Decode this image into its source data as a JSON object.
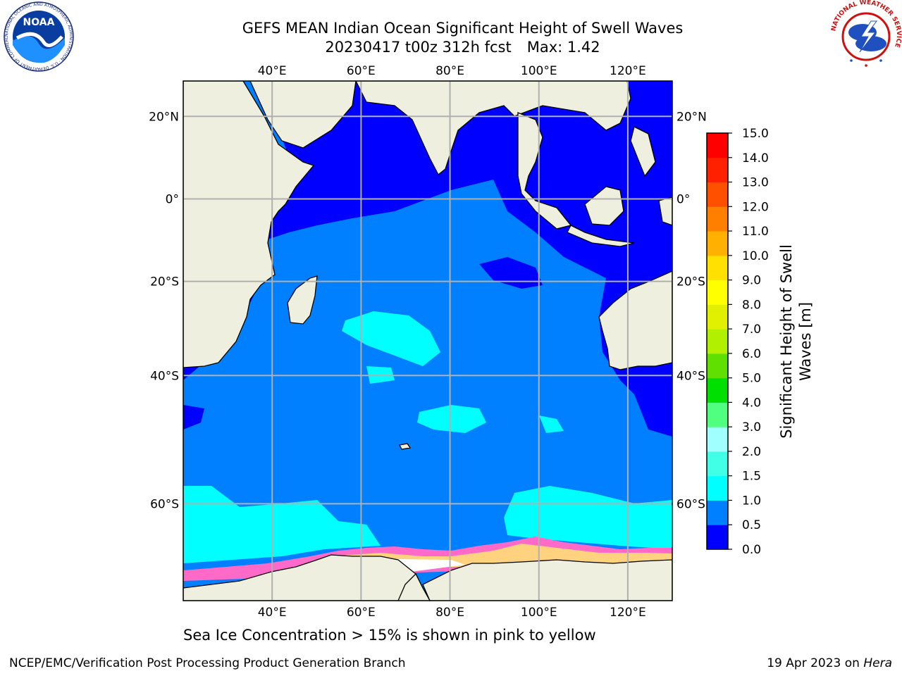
{
  "title": {
    "line1": "GEFS MEAN Indian Ocean Significant Height of Swell Waves",
    "run": "20230417 t00z 312h fcst",
    "max": "Max: 1.42"
  },
  "logos": {
    "noaa_text": "NOAA",
    "noaa_ring": "NATIONAL OCEANIC AND ATMOSPHERIC ADMINISTRATION · U.S. DEPARTMENT OF COMMERCE",
    "nws_ring": "NATIONAL WEATHER SERVICE"
  },
  "map": {
    "lon_labels": [
      "40°E",
      "60°E",
      "80°E",
      "100°E",
      "120°E"
    ],
    "lon_values": [
      40,
      60,
      80,
      100,
      120
    ],
    "lat_labels": [
      "20°N",
      "0°",
      "20°S",
      "40°S",
      "60°S"
    ],
    "lat_values": [
      20,
      0,
      -20,
      -40,
      -60
    ],
    "extent": {
      "lon_min": 20,
      "lon_max": 130,
      "lat_min": -70,
      "lat_max": 28
    },
    "colors": {
      "land": "#efefdf",
      "grid": "#b0b0b0",
      "swell_0_05": "#0000ff",
      "swell_05_10": "#0080ff",
      "swell_10_15": "#00ffff",
      "ice_pink": "#ff69c8",
      "ice_yellow": "#ffd27f"
    }
  },
  "colorbar": {
    "ticks": [
      "0.0",
      "0.5",
      "1.0",
      "1.5",
      "2.0",
      "3.0",
      "4.0",
      "5.0",
      "6.0",
      "7.0",
      "8.0",
      "9.0",
      "10.0",
      "11.0",
      "12.0",
      "13.0",
      "14.0",
      "15.0"
    ],
    "colors": [
      "#0000ff",
      "#0080ff",
      "#00ffff",
      "#40ffe6",
      "#a0ffff",
      "#50ff80",
      "#00e000",
      "#60e000",
      "#b0f000",
      "#e0f000",
      "#ffff00",
      "#ffe000",
      "#ffb000",
      "#ff8000",
      "#ff5000",
      "#ff2000",
      "#ff0000"
    ],
    "label_line1": "Significant Height of Swell",
    "label_line2": "Waves [m]"
  },
  "footnote": "Sea Ice Concentration > 15% is shown in pink to yellow",
  "footer_left": "NCEP/EMC/Verification Post Processing Product Generation Branch",
  "footer_right_prefix": "19 Apr 2023 on ",
  "footer_right_machine": "Hera"
}
